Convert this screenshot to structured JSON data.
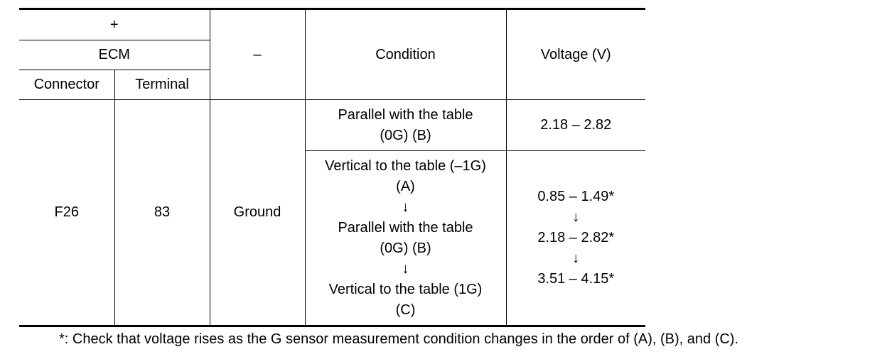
{
  "table": {
    "header": {
      "plus": "+",
      "ecm": "ECM",
      "connector": "Connector",
      "terminal": "Terminal",
      "minus": "–",
      "condition": "Condition",
      "voltage": "Voltage (V)"
    },
    "rows": [
      {
        "connector": "F26",
        "terminal": "83",
        "minus": "Ground",
        "conditions": [
          {
            "lines": [
              "Parallel with the table",
              "(0G) (B)"
            ],
            "voltage": [
              "2.18 – 2.82"
            ]
          },
          {
            "lines": [
              "Vertical to the table (–1G)",
              "(A)",
              "↓",
              "Parallel with the table",
              "(0G) (B)",
              "↓",
              "Vertical to the table (1G)",
              "(C)"
            ],
            "voltage": [
              "0.85 – 1.49*",
              "↓",
              "2.18 – 2.82*",
              "↓",
              "3.51 – 4.15*"
            ]
          }
        ]
      }
    ]
  },
  "footnote": "*: Check that voltage rises as the G sensor measurement condition changes in the order of (A), (B), and (C)."
}
